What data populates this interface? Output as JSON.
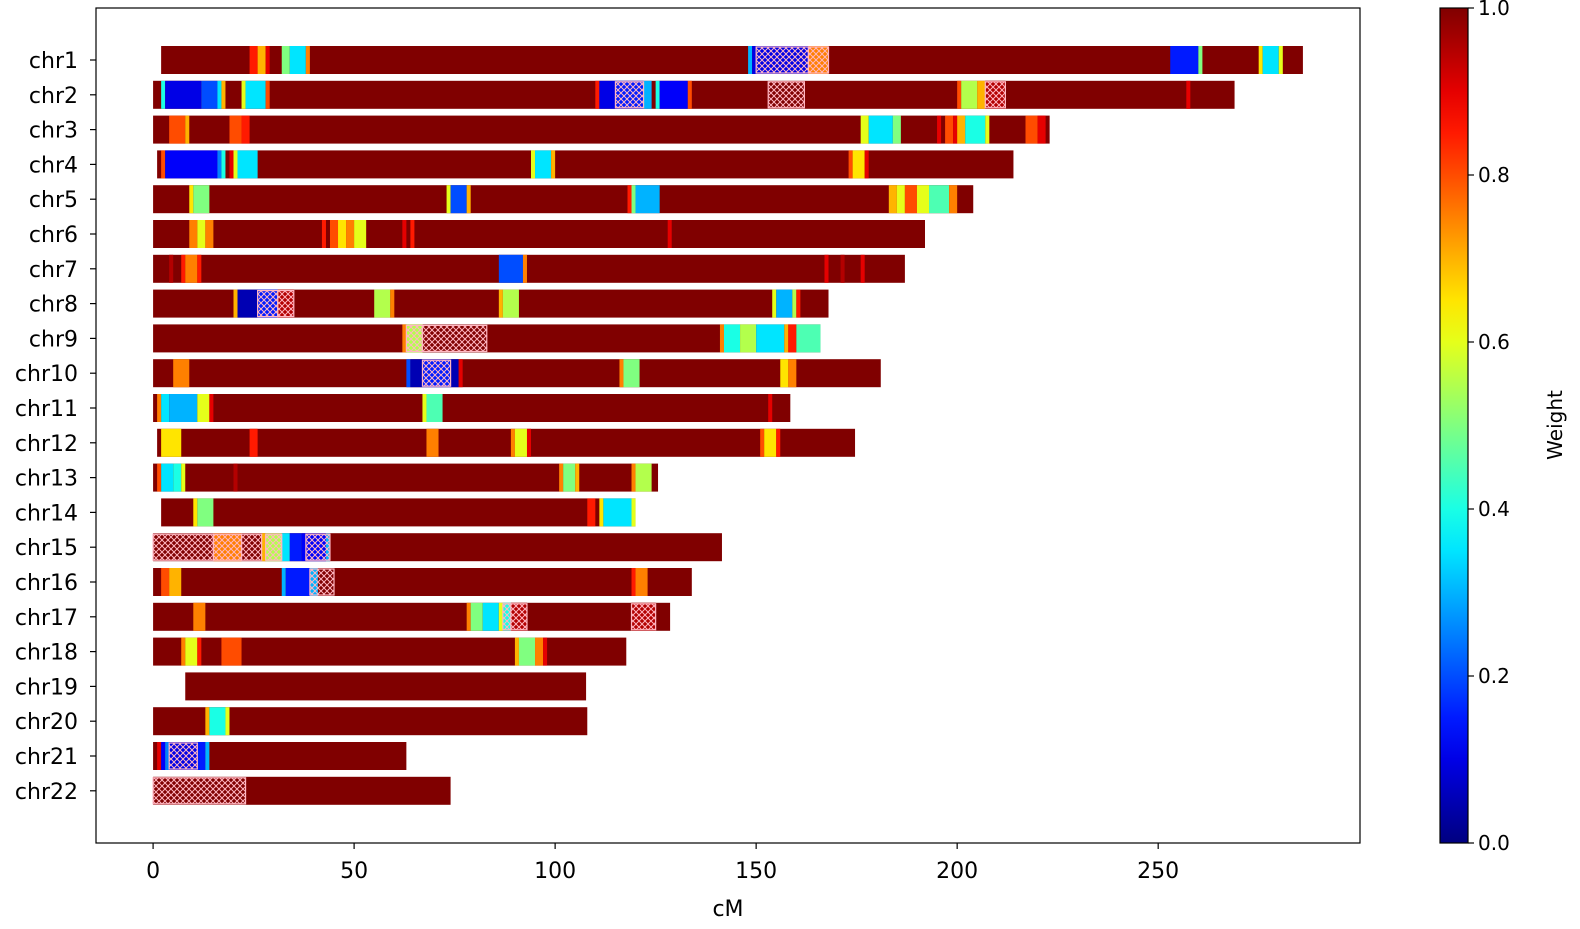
{
  "chart_data": {
    "type": "heatmap",
    "title": "",
    "xlabel": "cM",
    "ylabel": "",
    "xlim": [
      -14.2,
      300.2
    ],
    "x_ticks": [
      0,
      50,
      100,
      150,
      200,
      250
    ],
    "grid": false,
    "colormap": "jet",
    "colorbar": {
      "label": "Weight",
      "range": [
        0.0,
        1.0
      ],
      "ticks": [
        "0.0",
        "0.2",
        "0.4",
        "0.6",
        "0.8",
        "1.0"
      ],
      "placement": "right"
    },
    "base_weight": 1.0,
    "chromosomes": [
      {
        "name": "chr1",
        "start": 2,
        "end": 286,
        "segments": [
          [
            24,
            26,
            0.85
          ],
          [
            26,
            28,
            0.7
          ],
          [
            28,
            29,
            0.9
          ],
          [
            32,
            34,
            0.5
          ],
          [
            34,
            38,
            0.35
          ],
          [
            38,
            39,
            0.75
          ],
          [
            148,
            149,
            0.3
          ],
          [
            149,
            150,
            0.1
          ],
          [
            150,
            163,
            0.1
          ],
          [
            163,
            168,
            0.75
          ],
          [
            253,
            260,
            0.15
          ],
          [
            260,
            261,
            0.5
          ],
          [
            275,
            276,
            0.65
          ],
          [
            276,
            280,
            0.35
          ],
          [
            280,
            281,
            0.6
          ]
        ],
        "hatched": [
          [
            150,
            163
          ],
          [
            163,
            168
          ]
        ]
      },
      {
        "name": "chr2",
        "start": 0,
        "end": 269,
        "segments": [
          [
            2,
            3,
            0.4
          ],
          [
            3,
            12,
            0.1
          ],
          [
            12,
            16,
            0.2
          ],
          [
            16,
            17,
            0.35
          ],
          [
            17,
            18,
            0.7
          ],
          [
            22,
            23,
            0.6
          ],
          [
            23,
            28,
            0.35
          ],
          [
            28,
            29,
            0.8
          ],
          [
            110,
            111,
            0.85
          ],
          [
            111,
            115,
            0.1
          ],
          [
            115,
            122,
            0.15
          ],
          [
            122,
            124,
            0.3
          ],
          [
            125,
            126,
            0.4
          ],
          [
            126,
            133,
            0.12
          ],
          [
            133,
            134,
            0.8
          ],
          [
            200,
            201,
            0.8
          ],
          [
            201,
            205,
            0.55
          ],
          [
            205,
            207,
            0.7
          ],
          [
            207,
            212,
            0.95
          ],
          [
            257,
            258,
            0.9
          ]
        ],
        "hatched": [
          [
            115,
            122
          ],
          [
            153,
            162
          ],
          [
            207,
            212
          ]
        ]
      },
      {
        "name": "chr3",
        "start": 0,
        "end": 223,
        "segments": [
          [
            4,
            8,
            0.8
          ],
          [
            8,
            9,
            0.7
          ],
          [
            19,
            22,
            0.8
          ],
          [
            22,
            24,
            0.85
          ],
          [
            176,
            178,
            0.6
          ],
          [
            178,
            184,
            0.35
          ],
          [
            184,
            186,
            0.5
          ],
          [
            195,
            196,
            0.9
          ],
          [
            197,
            199,
            0.8
          ],
          [
            199,
            200,
            0.9
          ],
          [
            200,
            202,
            0.7
          ],
          [
            202,
            207,
            0.4
          ],
          [
            207,
            208,
            0.6
          ],
          [
            217,
            220,
            0.8
          ],
          [
            220,
            222,
            0.9
          ]
        ],
        "hatched": []
      },
      {
        "name": "chr4",
        "start": 1,
        "end": 214,
        "segments": [
          [
            2,
            3,
            0.8
          ],
          [
            3,
            16,
            0.12
          ],
          [
            16,
            17,
            0.25
          ],
          [
            17,
            18,
            0.4
          ],
          [
            19,
            20,
            0.9
          ],
          [
            20,
            21,
            0.6
          ],
          [
            21,
            26,
            0.35
          ],
          [
            94,
            95,
            0.6
          ],
          [
            95,
            99,
            0.35
          ],
          [
            99,
            100,
            0.7
          ],
          [
            173,
            174,
            0.8
          ],
          [
            174,
            177,
            0.65
          ],
          [
            177,
            178,
            0.9
          ]
        ],
        "hatched": []
      },
      {
        "name": "chr5",
        "start": 0,
        "end": 204,
        "segments": [
          [
            9,
            10,
            0.65
          ],
          [
            10,
            14,
            0.5
          ],
          [
            73,
            74,
            0.6
          ],
          [
            74,
            78,
            0.2
          ],
          [
            78,
            79,
            0.7
          ],
          [
            118,
            119,
            0.85
          ],
          [
            119,
            120,
            0.5
          ],
          [
            120,
            126,
            0.3
          ],
          [
            183,
            185,
            0.7
          ],
          [
            185,
            187,
            0.6
          ],
          [
            187,
            190,
            0.8
          ],
          [
            190,
            193,
            0.6
          ],
          [
            193,
            198,
            0.45
          ],
          [
            198,
            200,
            0.75
          ]
        ],
        "hatched": []
      },
      {
        "name": "chr6",
        "start": 0,
        "end": 192,
        "segments": [
          [
            9,
            11,
            0.75
          ],
          [
            11,
            13,
            0.6
          ],
          [
            13,
            15,
            0.75
          ],
          [
            42,
            43,
            0.85
          ],
          [
            44,
            46,
            0.8
          ],
          [
            46,
            48,
            0.65
          ],
          [
            48,
            50,
            0.75
          ],
          [
            50,
            53,
            0.6
          ],
          [
            62,
            63,
            0.9
          ],
          [
            64,
            65,
            0.85
          ],
          [
            128,
            129,
            0.9
          ]
        ],
        "hatched": []
      },
      {
        "name": "chr7",
        "start": 0,
        "end": 187,
        "segments": [
          [
            4,
            5,
            0.95
          ],
          [
            7,
            8,
            0.85
          ],
          [
            8,
            11,
            0.75
          ],
          [
            11,
            12,
            0.85
          ],
          [
            86,
            92,
            0.2
          ],
          [
            92,
            93,
            0.75
          ],
          [
            167,
            168,
            0.9
          ],
          [
            171,
            172,
            0.95
          ],
          [
            176,
            177,
            0.9
          ]
        ],
        "hatched": []
      },
      {
        "name": "chr8",
        "start": 0,
        "end": 168,
        "segments": [
          [
            20,
            21,
            0.7
          ],
          [
            21,
            26,
            0.05
          ],
          [
            26,
            31,
            0.15
          ],
          [
            31,
            35,
            0.95
          ],
          [
            55,
            59,
            0.55
          ],
          [
            59,
            60,
            0.75
          ],
          [
            86,
            87,
            0.7
          ],
          [
            87,
            91,
            0.55
          ],
          [
            154,
            155,
            0.6
          ],
          [
            155,
            159,
            0.3
          ],
          [
            159,
            160,
            0.55
          ],
          [
            160,
            161,
            0.85
          ]
        ],
        "hatched": [
          [
            26,
            31
          ],
          [
            31,
            35
          ]
        ]
      },
      {
        "name": "chr9",
        "start": 0,
        "end": 166,
        "segments": [
          [
            62,
            63,
            0.75
          ],
          [
            63,
            67,
            0.55
          ],
          [
            141,
            142,
            0.75
          ],
          [
            142,
            146,
            0.4
          ],
          [
            146,
            150,
            0.55
          ],
          [
            150,
            157,
            0.35
          ],
          [
            157,
            158,
            0.7
          ],
          [
            158,
            160,
            0.85
          ],
          [
            160,
            166,
            0.45
          ]
        ],
        "hatched": [
          [
            63,
            67
          ],
          [
            67,
            83
          ]
        ]
      },
      {
        "name": "chr10",
        "start": 0,
        "end": 181,
        "segments": [
          [
            5,
            9,
            0.75
          ],
          [
            63,
            64,
            0.2
          ],
          [
            64,
            67,
            0.05
          ],
          [
            67,
            74,
            0.15
          ],
          [
            74,
            76,
            0.05
          ],
          [
            76,
            77,
            0.9
          ],
          [
            116,
            117,
            0.75
          ],
          [
            117,
            121,
            0.5
          ],
          [
            156,
            158,
            0.65
          ],
          [
            158,
            160,
            0.75
          ]
        ],
        "hatched": [
          [
            67,
            74
          ]
        ]
      },
      {
        "name": "chr11",
        "start": 0,
        "end": 158.5,
        "segments": [
          [
            1,
            2,
            0.75
          ],
          [
            2,
            4,
            0.35
          ],
          [
            4,
            11,
            0.3
          ],
          [
            11,
            14,
            0.6
          ],
          [
            14,
            15,
            0.9
          ],
          [
            67,
            68,
            0.6
          ],
          [
            68,
            72,
            0.45
          ],
          [
            153,
            154,
            0.9
          ]
        ],
        "hatched": []
      },
      {
        "name": "chr12",
        "start": 1,
        "end": 174.6,
        "segments": [
          [
            2,
            7,
            0.65
          ],
          [
            24,
            26,
            0.85
          ],
          [
            68,
            71,
            0.75
          ],
          [
            89,
            90,
            0.75
          ],
          [
            90,
            93,
            0.6
          ],
          [
            93,
            94,
            0.9
          ],
          [
            151,
            152,
            0.8
          ],
          [
            152,
            155,
            0.65
          ],
          [
            155,
            156,
            0.85
          ]
        ],
        "hatched": []
      },
      {
        "name": "chr13",
        "start": 0,
        "end": 125.6,
        "segments": [
          [
            1,
            2,
            0.8
          ],
          [
            2,
            5,
            0.35
          ],
          [
            5,
            7,
            0.4
          ],
          [
            7,
            8,
            0.6
          ],
          [
            20,
            21,
            0.95
          ],
          [
            101,
            102,
            0.75
          ],
          [
            102,
            105,
            0.5
          ],
          [
            105,
            106,
            0.7
          ],
          [
            119,
            120,
            0.75
          ],
          [
            120,
            124,
            0.55
          ]
        ],
        "hatched": []
      },
      {
        "name": "chr14",
        "start": 2,
        "end": 120,
        "segments": [
          [
            10,
            11,
            0.65
          ],
          [
            11,
            15,
            0.5
          ],
          [
            108,
            110,
            0.85
          ],
          [
            111,
            112,
            0.65
          ],
          [
            112,
            119,
            0.35
          ],
          [
            119,
            120,
            0.6
          ]
        ],
        "hatched": []
      },
      {
        "name": "chr15",
        "start": 0,
        "end": 141.5,
        "segments": [
          [
            15,
            22,
            0.75
          ],
          [
            27,
            28,
            0.7
          ],
          [
            28,
            32,
            0.55
          ],
          [
            32,
            34,
            0.35
          ],
          [
            34,
            37,
            0.15
          ],
          [
            37,
            43,
            0.12
          ],
          [
            43,
            44,
            0.3
          ]
        ],
        "hatched": [
          [
            0,
            15
          ],
          [
            15,
            22
          ],
          [
            22,
            27
          ],
          [
            28,
            32
          ],
          [
            38,
            44
          ]
        ]
      },
      {
        "name": "chr16",
        "start": 0,
        "end": 134,
        "segments": [
          [
            2,
            4,
            0.8
          ],
          [
            4,
            7,
            0.7
          ],
          [
            32,
            33,
            0.3
          ],
          [
            33,
            39,
            0.15
          ],
          [
            39,
            41,
            0.3
          ],
          [
            119,
            120,
            0.85
          ],
          [
            120,
            123,
            0.75
          ]
        ],
        "hatched": [
          [
            39,
            45
          ]
        ]
      },
      {
        "name": "chr17",
        "start": 0,
        "end": 128.6,
        "segments": [
          [
            10,
            13,
            0.75
          ],
          [
            78,
            79,
            0.75
          ],
          [
            79,
            82,
            0.5
          ],
          [
            82,
            86,
            0.35
          ],
          [
            86,
            87,
            0.6
          ],
          [
            87,
            89,
            0.4
          ],
          [
            89,
            93,
            0.95
          ],
          [
            119,
            125,
            0.95
          ]
        ],
        "hatched": [
          [
            87,
            89
          ],
          [
            89,
            93
          ],
          [
            119,
            125
          ]
        ]
      },
      {
        "name": "chr18",
        "start": 0,
        "end": 117.7,
        "segments": [
          [
            7,
            8,
            0.75
          ],
          [
            8,
            11,
            0.6
          ],
          [
            11,
            12,
            0.85
          ],
          [
            17,
            22,
            0.8
          ],
          [
            90,
            91,
            0.7
          ],
          [
            91,
            95,
            0.5
          ],
          [
            95,
            97,
            0.75
          ],
          [
            97,
            98,
            0.9
          ]
        ],
        "hatched": []
      },
      {
        "name": "chr19",
        "start": 8,
        "end": 107.7,
        "segments": [],
        "hatched": []
      },
      {
        "name": "chr20",
        "start": 0,
        "end": 108,
        "segments": [
          [
            13,
            14,
            0.7
          ],
          [
            14,
            18,
            0.4
          ],
          [
            18,
            19,
            0.6
          ]
        ],
        "hatched": []
      },
      {
        "name": "chr21",
        "start": 0,
        "end": 63,
        "segments": [
          [
            1,
            2,
            0.9
          ],
          [
            2,
            3,
            0.12
          ],
          [
            3,
            4,
            0.25
          ],
          [
            4,
            11,
            0.1
          ],
          [
            11,
            13,
            0.15
          ],
          [
            13,
            14,
            0.3
          ]
        ],
        "hatched": [
          [
            4,
            11
          ]
        ]
      },
      {
        "name": "chr22",
        "start": 0,
        "end": 74,
        "segments": [],
        "hatched": [
          [
            0,
            23
          ]
        ]
      }
    ]
  }
}
